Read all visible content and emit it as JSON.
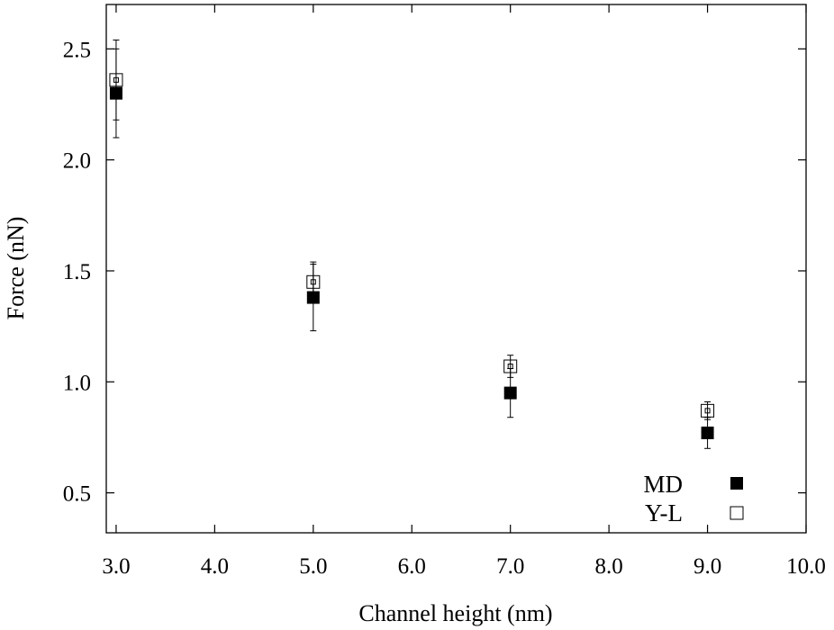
{
  "chart_data": {
    "type": "scatter",
    "title": "",
    "xlabel": "Channel height (nm)",
    "ylabel": "Force (nN)",
    "xlim": [
      2.9,
      10.0
    ],
    "ylim": [
      0.32,
      2.7
    ],
    "x_ticks": [
      3.0,
      4.0,
      5.0,
      6.0,
      7.0,
      8.0,
      9.0,
      10.0
    ],
    "x_tick_labels": [
      "3.0",
      "4.0",
      "5.0",
      "6.0",
      "7.0",
      "8.0",
      "9.0",
      "10.0"
    ],
    "y_ticks": [
      0.5,
      1.0,
      1.5,
      2.0,
      2.5
    ],
    "y_tick_labels": [
      "0.5",
      "1.0",
      "1.5",
      "2.0",
      "2.5"
    ],
    "grid": false,
    "legend": {
      "position": "bottom-right"
    },
    "series": [
      {
        "name": "MD",
        "marker": "filled-square",
        "color": "#000000",
        "x": [
          3.0,
          5.0,
          7.0,
          9.0
        ],
        "y": [
          2.3,
          1.38,
          0.95,
          0.77
        ],
        "err_low": [
          2.1,
          1.23,
          0.84,
          0.7
        ],
        "err_high": [
          2.5,
          1.53,
          1.06,
          0.84
        ]
      },
      {
        "name": "Y-L",
        "marker": "open-square",
        "color": "#000000",
        "x": [
          3.0,
          5.0,
          7.0,
          9.0
        ],
        "y": [
          2.36,
          1.45,
          1.07,
          0.87
        ],
        "err_low": [
          2.18,
          1.37,
          1.02,
          0.83
        ],
        "err_high": [
          2.54,
          1.54,
          1.12,
          0.91
        ]
      }
    ]
  }
}
